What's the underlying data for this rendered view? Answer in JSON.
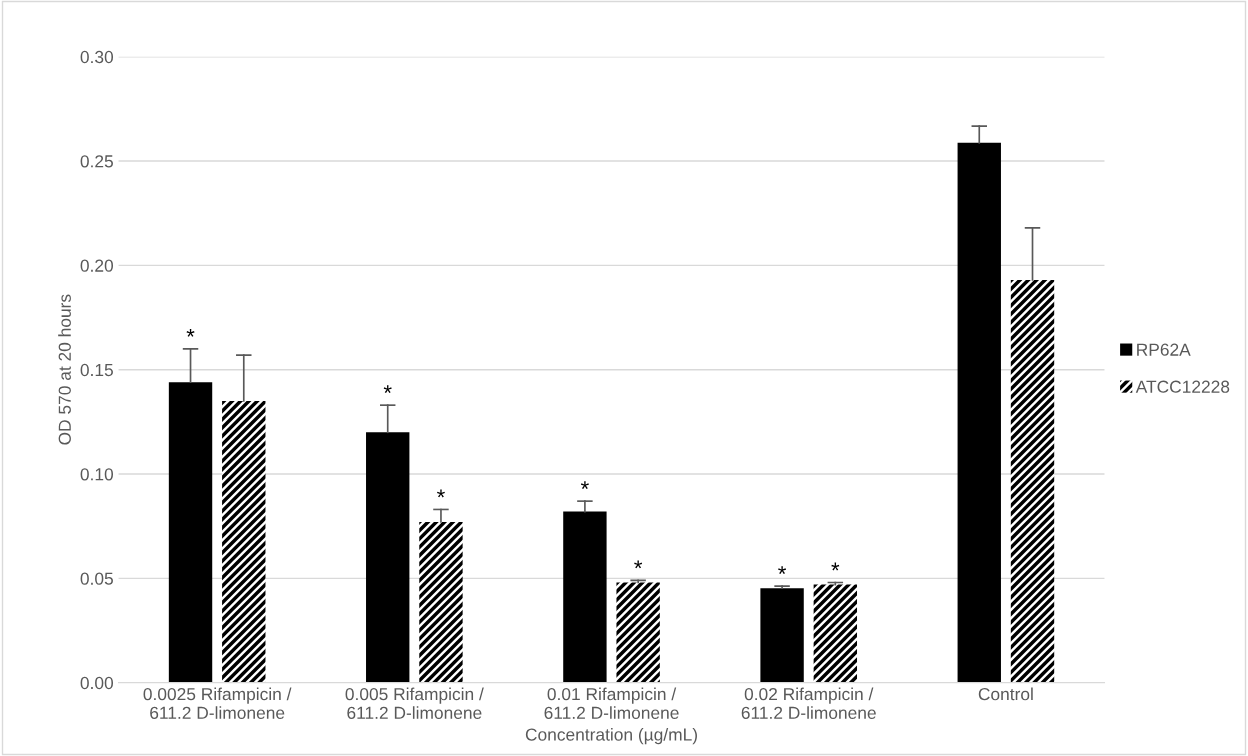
{
  "chart_data": {
    "type": "bar",
    "xlabel": "Concentration (µg/mL)",
    "ylabel": "OD 570 at 20 hours",
    "categories": [
      "0.0025 Rifampicin /\n611.2 D-limonene",
      "0.005 Rifampicin /\n611.2 D-limonene",
      "0.01 Rifampicin /\n611.2 D-limonene",
      "0.02 Rifampicin /\n611.2 D-limonene",
      "Control"
    ],
    "series": [
      {
        "name": "RP62A",
        "color": "#000000",
        "values": [
          0.144,
          0.12,
          0.082,
          0.0453,
          0.2587
        ],
        "errors": [
          [
            0.144,
            0.16
          ],
          [
            0.12,
            0.133
          ],
          [
            0.082,
            0.087
          ],
          [
            0.0453,
            0.0463
          ],
          [
            0.2587,
            0.2667
          ]
        ],
        "value_labels": [
          "*",
          "*",
          "*",
          "*",
          null
        ]
      },
      {
        "name": "ATCC12228",
        "color": "#000000",
        "values": [
          0.135,
          0.077,
          0.048,
          0.047,
          0.193
        ],
        "errors": [
          [
            0.135,
            0.157
          ],
          [
            0.077,
            0.083
          ],
          [
            0.048,
            0.049
          ],
          [
            0.047,
            0.048
          ],
          [
            0.193,
            0.218
          ]
        ],
        "value_labels": [
          null,
          "*",
          "*",
          "*",
          null
        ]
      }
    ],
    "ylim": [
      0,
      0.3
    ],
    "yticks": [
      {
        "value": 0,
        "label": "0.00"
      },
      {
        "value": 0.05,
        "label": "0.05"
      },
      {
        "value": 0.1,
        "label": "0.10"
      },
      {
        "value": 0.15,
        "label": "0.15"
      },
      {
        "value": 0.2,
        "label": "0.20"
      },
      {
        "value": 0.25,
        "label": "0.25"
      },
      {
        "value": 0.3,
        "label": "0.30"
      }
    ],
    "grid": "y",
    "legend": "right"
  }
}
